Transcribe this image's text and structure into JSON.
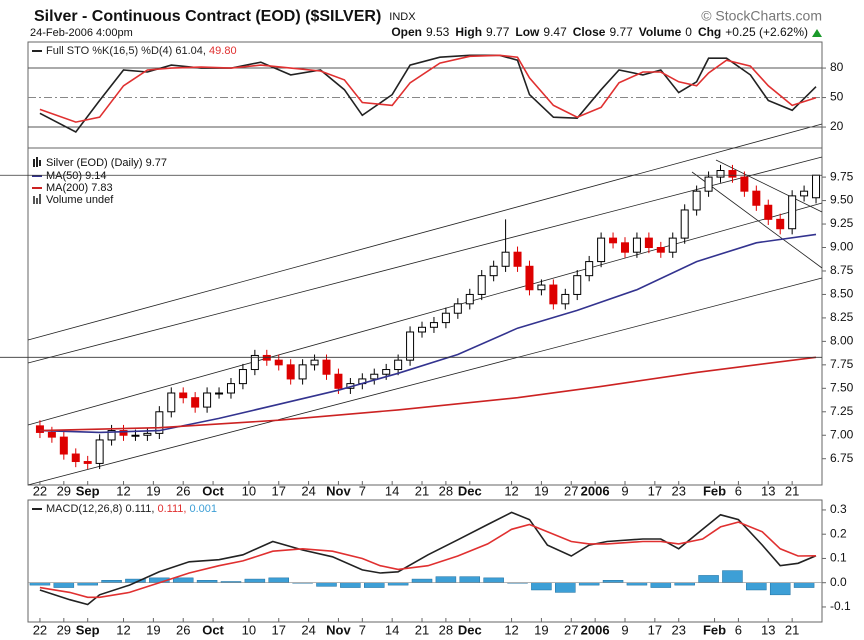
{
  "header": {
    "title": "Silver - Continuous Contract (EOD) ($SILVER)",
    "exchange": "INDX",
    "source": "© StockCharts.com",
    "date": "24-Feb-2006 4:00pm",
    "quote": [
      {
        "label": "Open",
        "value": "9.53"
      },
      {
        "label": "High",
        "value": "9.77"
      },
      {
        "label": "Low",
        "value": "9.47"
      },
      {
        "label": "Close",
        "value": "9.77"
      },
      {
        "label": "Volume",
        "value": "0"
      },
      {
        "label": "Chg",
        "value": "+0.25 (+2.62%)"
      }
    ]
  },
  "chart_data": [
    {
      "type": "line",
      "legend": {
        "k_label": "Full STO %K(16,5) %D(4) 61.04,",
        "d_label": "49.80"
      },
      "ylim": [
        -1.3,
        106.5
      ],
      "yticks": [
        20,
        50,
        80
      ],
      "grid": true,
      "grid_styles": [
        "solid",
        "dashdot",
        "solid"
      ],
      "series": [
        {
          "color": "#222222",
          "x": [
            0,
            6,
            10,
            14,
            18,
            22,
            27,
            32,
            37,
            42,
            47,
            51,
            54,
            59,
            62,
            67,
            72,
            77,
            80,
            82,
            86,
            90,
            94,
            97,
            101,
            104,
            107,
            110,
            112,
            115,
            119,
            122,
            126,
            130
          ],
          "values": [
            34,
            15,
            47,
            78,
            76,
            83,
            80,
            80,
            86,
            73,
            78,
            58,
            32,
            53,
            83,
            91,
            93,
            93,
            88,
            53,
            30,
            29,
            58,
            78,
            73,
            78,
            55,
            66,
            90,
            90,
            73,
            47,
            37,
            61.04
          ]
        },
        {
          "color": "#e03030",
          "x": [
            0,
            6,
            10,
            14,
            18,
            22,
            27,
            32,
            37,
            42,
            47,
            51,
            54,
            59,
            62,
            67,
            72,
            77,
            80,
            82,
            86,
            90,
            94,
            97,
            101,
            104,
            107,
            110,
            112,
            115,
            119,
            122,
            126,
            130
          ],
          "values": [
            38,
            25,
            30,
            62,
            78,
            80,
            81,
            80,
            83,
            80,
            77,
            68,
            45,
            42,
            65,
            85,
            92,
            93,
            91,
            70,
            42,
            30,
            40,
            65,
            76,
            76,
            66,
            62,
            75,
            88,
            82,
            62,
            42,
            49.8
          ]
        }
      ]
    },
    {
      "type": "candlestick",
      "name": "Silver (EOD) (Daily) 9.77",
      "volume_label": "Volume undef",
      "up_color": "#000000",
      "down_color": "#dd0000",
      "xlim": [
        -2,
        131
      ],
      "xticks": [
        {
          "value": 0,
          "label": "22"
        },
        {
          "value": 4,
          "label": "29"
        },
        {
          "value": 8,
          "label": "Sep"
        },
        {
          "value": 14,
          "label": "12"
        },
        {
          "value": 19,
          "label": "19"
        },
        {
          "value": 24,
          "label": "26"
        },
        {
          "value": 29,
          "label": "Oct"
        },
        {
          "value": 35,
          "label": "10"
        },
        {
          "value": 40,
          "label": "17"
        },
        {
          "value": 45,
          "label": "24"
        },
        {
          "value": 50,
          "label": "Nov"
        },
        {
          "value": 54,
          "label": "7"
        },
        {
          "value": 59,
          "label": "14"
        },
        {
          "value": 64,
          "label": "21"
        },
        {
          "value": 68,
          "label": "28"
        },
        {
          "value": 72,
          "label": "Dec"
        },
        {
          "value": 79,
          "label": "12"
        },
        {
          "value": 84,
          "label": "19"
        },
        {
          "value": 89,
          "label": "27"
        },
        {
          "value": 93,
          "label": "2006"
        },
        {
          "value": 98,
          "label": "9"
        },
        {
          "value": 103,
          "label": "17"
        },
        {
          "value": 107,
          "label": "23"
        },
        {
          "value": 113,
          "label": "Feb"
        },
        {
          "value": 117,
          "label": "6"
        },
        {
          "value": 122,
          "label": "13"
        },
        {
          "value": 126,
          "label": "21"
        }
      ],
      "ylim": [
        6.47,
        10.06
      ],
      "yticks": [
        6.75,
        {
          "value": 7,
          "label": "7.00"
        },
        7.25,
        {
          "value": 7.5,
          "label": "7.50"
        },
        7.75,
        {
          "value": 8,
          "label": "8.00"
        },
        8.25,
        {
          "value": 8.5,
          "label": "8.50"
        },
        8.75,
        {
          "value": 9,
          "label": "9.00"
        },
        9.25,
        {
          "value": 9.5,
          "label": "9.50"
        },
        9.75
      ],
      "x": [
        0,
        2,
        4,
        6,
        8,
        10,
        12,
        14,
        16,
        18,
        20,
        22,
        24,
        26,
        28,
        30,
        32,
        34,
        36,
        38,
        40,
        42,
        44,
        46,
        48,
        50,
        52,
        54,
        56,
        58,
        60,
        62,
        64,
        66,
        68,
        70,
        72,
        74,
        76,
        78,
        80,
        82,
        84,
        86,
        88,
        90,
        92,
        94,
        96,
        98,
        100,
        102,
        104,
        106,
        108,
        110,
        112,
        114,
        116,
        118,
        120,
        122,
        124,
        126,
        128,
        130
      ],
      "open": [
        7.1,
        7.03,
        6.98,
        6.8,
        6.72,
        6.7,
        6.95,
        7.05,
        7.0,
        7.0,
        7.02,
        7.25,
        7.45,
        7.4,
        7.3,
        7.45,
        7.45,
        7.55,
        7.7,
        7.85,
        7.8,
        7.75,
        7.6,
        7.75,
        7.8,
        7.65,
        7.5,
        7.55,
        7.6,
        7.65,
        7.7,
        7.8,
        8.1,
        8.15,
        8.2,
        8.3,
        8.4,
        8.5,
        8.7,
        8.8,
        8.95,
        8.8,
        8.55,
        8.6,
        8.4,
        8.5,
        8.7,
        8.85,
        9.1,
        9.05,
        8.95,
        9.1,
        9.0,
        8.95,
        9.1,
        9.4,
        9.6,
        9.75,
        9.82,
        9.75,
        9.6,
        9.45,
        9.3,
        9.2,
        9.55,
        9.53
      ],
      "high": [
        7.16,
        7.09,
        7.04,
        6.86,
        6.78,
        7.01,
        7.11,
        7.11,
        7.06,
        7.08,
        7.31,
        7.51,
        7.51,
        7.46,
        7.51,
        7.51,
        7.61,
        7.76,
        7.91,
        7.91,
        7.86,
        7.81,
        7.81,
        7.86,
        7.86,
        7.71,
        7.61,
        7.66,
        7.71,
        7.76,
        7.86,
        8.16,
        8.21,
        8.26,
        8.36,
        8.46,
        8.56,
        8.76,
        8.86,
        9.3,
        9.01,
        8.86,
        8.66,
        8.66,
        8.56,
        8.76,
        8.91,
        9.16,
        9.16,
        9.11,
        9.16,
        9.16,
        9.06,
        9.16,
        9.46,
        9.66,
        9.81,
        9.88,
        9.88,
        9.81,
        9.66,
        9.51,
        9.36,
        9.61,
        9.66,
        9.77
      ],
      "low": [
        6.97,
        6.92,
        6.74,
        6.66,
        6.64,
        6.64,
        6.89,
        6.94,
        6.94,
        6.94,
        6.96,
        7.19,
        7.34,
        7.24,
        7.24,
        7.39,
        7.39,
        7.49,
        7.64,
        7.74,
        7.69,
        7.54,
        7.54,
        7.69,
        7.59,
        7.44,
        7.44,
        7.49,
        7.54,
        7.59,
        7.64,
        7.74,
        8.04,
        8.09,
        8.14,
        8.24,
        8.34,
        8.44,
        8.64,
        8.74,
        8.74,
        8.49,
        8.49,
        8.34,
        8.34,
        8.44,
        8.64,
        8.79,
        8.99,
        8.89,
        8.89,
        8.94,
        8.89,
        8.89,
        9.04,
        9.34,
        9.54,
        9.69,
        9.69,
        9.54,
        9.39,
        9.24,
        9.14,
        9.14,
        9.49,
        9.47
      ],
      "close": [
        7.03,
        6.98,
        6.8,
        6.72,
        6.7,
        6.95,
        7.05,
        7.0,
        7.0,
        7.02,
        7.25,
        7.45,
        7.4,
        7.3,
        7.45,
        7.45,
        7.55,
        7.7,
        7.85,
        7.8,
        7.75,
        7.6,
        7.75,
        7.8,
        7.65,
        7.5,
        7.55,
        7.6,
        7.65,
        7.7,
        7.8,
        8.1,
        8.15,
        8.2,
        8.3,
        8.4,
        8.5,
        8.7,
        8.8,
        8.95,
        8.8,
        8.55,
        8.6,
        8.4,
        8.5,
        8.7,
        8.85,
        9.1,
        9.05,
        8.95,
        9.1,
        9.0,
        8.95,
        9.1,
        9.4,
        9.6,
        9.75,
        9.82,
        9.75,
        9.6,
        9.45,
        9.3,
        9.2,
        9.55,
        9.6,
        9.77
      ],
      "series": [
        {
          "name": "MA(50) 9.14",
          "color": "#33338f",
          "x": [
            0,
            10,
            20,
            30,
            40,
            50,
            60,
            70,
            80,
            90,
            100,
            110,
            120,
            130
          ],
          "values": [
            7.05,
            7.03,
            7.05,
            7.18,
            7.33,
            7.48,
            7.66,
            7.86,
            8.14,
            8.33,
            8.55,
            8.85,
            9.05,
            9.14
          ]
        },
        {
          "name": "MA(200) 7.83",
          "color": "#cc2222",
          "x": [
            0,
            20,
            40,
            60,
            80,
            94,
            110,
            120,
            130
          ],
          "values": [
            7.05,
            7.08,
            7.16,
            7.27,
            7.4,
            7.52,
            7.67,
            7.75,
            7.83
          ]
        }
      ]
    },
    {
      "type": "macd",
      "legend": {
        "macd_label": "MACD(12,26,8) 0.111,",
        "signal_label": "0.111,",
        "hist_label": "0.001"
      },
      "ylim": [
        -0.162,
        0.341
      ],
      "yticks": [
        0.3,
        0.2,
        0.1,
        {
          "value": 0,
          "label": "0.0"
        },
        -0.1
      ],
      "series": [
        {
          "color": "#222222",
          "x": [
            0,
            5,
            8,
            10,
            15,
            20,
            25,
            30,
            34,
            39,
            44,
            49,
            54,
            57,
            60,
            65,
            70,
            75,
            79,
            82,
            85,
            89,
            92,
            95,
            101,
            104,
            107,
            111,
            114,
            117,
            121,
            124,
            127,
            130
          ],
          "values": [
            -0.03,
            -0.07,
            -0.09,
            -0.05,
            -0.01,
            0.045,
            0.086,
            0.095,
            0.115,
            0.17,
            0.135,
            0.107,
            0.053,
            0.04,
            0.045,
            0.115,
            0.177,
            0.24,
            0.29,
            0.26,
            0.155,
            0.11,
            0.155,
            0.17,
            0.18,
            0.18,
            0.14,
            0.22,
            0.28,
            0.26,
            0.155,
            0.07,
            0.08,
            0.111
          ]
        },
        {
          "color": "#e03030",
          "x": [
            0,
            5,
            8,
            10,
            15,
            20,
            25,
            30,
            34,
            39,
            44,
            49,
            54,
            57,
            60,
            65,
            70,
            75,
            79,
            82,
            85,
            89,
            92,
            95,
            101,
            104,
            107,
            111,
            114,
            117,
            121,
            124,
            127,
            130
          ],
          "values": [
            -0.02,
            -0.04,
            -0.06,
            -0.06,
            -0.04,
            0.0,
            0.04,
            0.07,
            0.09,
            0.13,
            0.14,
            0.13,
            0.1,
            0.07,
            0.055,
            0.07,
            0.11,
            0.16,
            0.22,
            0.24,
            0.21,
            0.17,
            0.16,
            0.16,
            0.17,
            0.17,
            0.16,
            0.18,
            0.23,
            0.25,
            0.21,
            0.14,
            0.11,
            0.111
          ]
        }
      ],
      "histogram": {
        "color": "#3d9fd6",
        "x": [
          0,
          4,
          8,
          12,
          16,
          20,
          24,
          28,
          32,
          36,
          40,
          44,
          48,
          52,
          56,
          60,
          64,
          68,
          72,
          76,
          80,
          84,
          88,
          92,
          96,
          100,
          104,
          108,
          112,
          116,
          120,
          124,
          128
        ],
        "values": [
          -0.01,
          -0.02,
          -0.01,
          0.01,
          0.015,
          0.02,
          0.02,
          0.01,
          0.005,
          0.015,
          0.02,
          0.0,
          -0.015,
          -0.02,
          -0.02,
          -0.01,
          0.015,
          0.025,
          0.025,
          0.02,
          0.0,
          -0.03,
          -0.04,
          -0.01,
          0.01,
          -0.01,
          -0.02,
          -0.01,
          0.03,
          0.05,
          -0.03,
          -0.05,
          -0.02
        ]
      }
    }
  ]
}
